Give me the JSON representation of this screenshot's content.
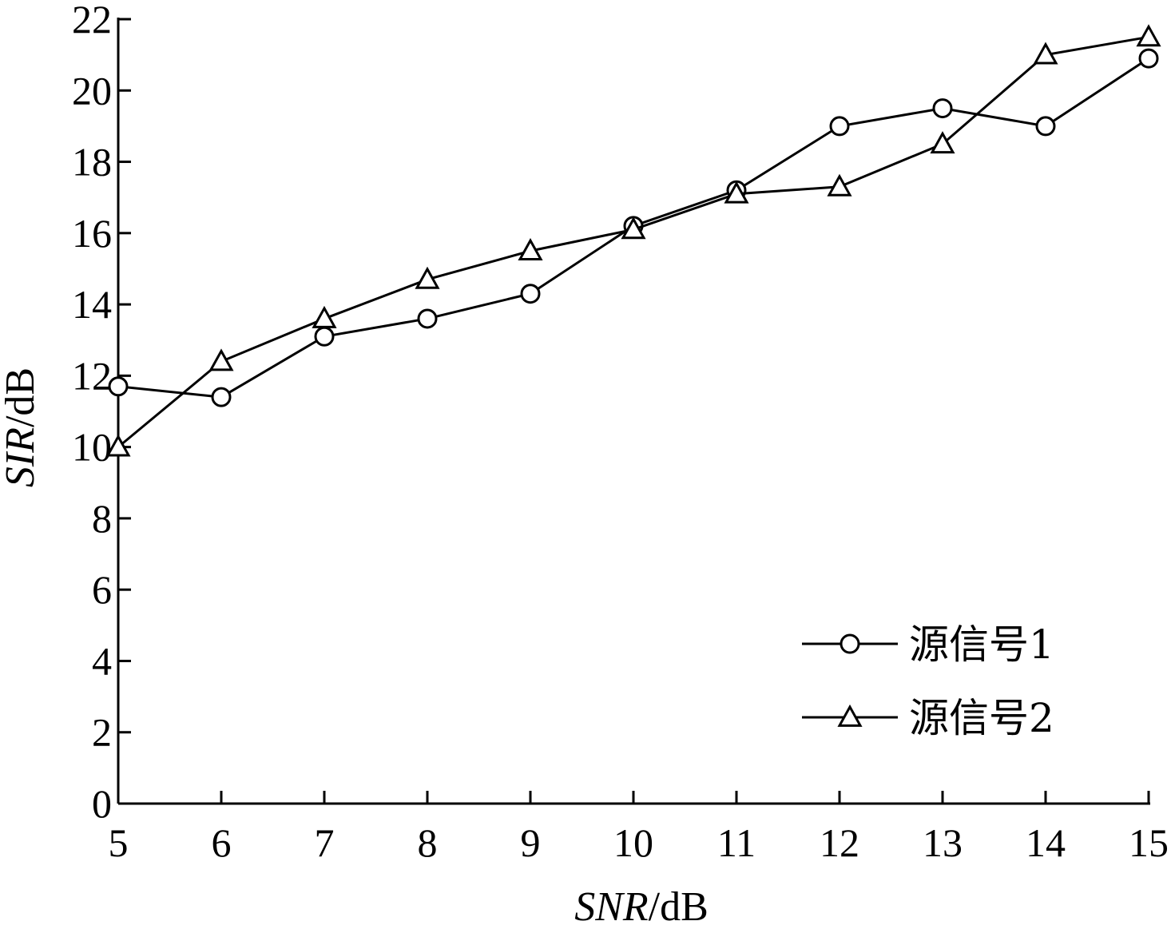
{
  "chart_data": {
    "type": "line",
    "xlabel": {
      "italic": "SNR",
      "unit": "/dB"
    },
    "ylabel": {
      "italic": "SIR",
      "unit": "/dB"
    },
    "xlim": [
      5,
      15
    ],
    "ylim": [
      0,
      22
    ],
    "xticks": [
      5,
      6,
      7,
      8,
      9,
      10,
      11,
      12,
      13,
      14,
      15
    ],
    "yticks": [
      0,
      2,
      4,
      6,
      8,
      10,
      12,
      14,
      16,
      18,
      20,
      22
    ],
    "grid": false,
    "legend_position": "bottom-right",
    "x": [
      5,
      6,
      7,
      8,
      9,
      10,
      11,
      12,
      13,
      14,
      15
    ],
    "series": [
      {
        "name": "源信号1",
        "marker": "circle",
        "values": [
          11.7,
          11.4,
          13.1,
          13.6,
          14.3,
          16.2,
          17.2,
          19.0,
          19.5,
          19.0,
          20.9
        ]
      },
      {
        "name": "源信号2",
        "marker": "triangle",
        "values": [
          10.0,
          12.4,
          13.6,
          14.7,
          15.5,
          16.1,
          17.1,
          17.3,
          18.5,
          21.0,
          21.5
        ]
      }
    ]
  }
}
